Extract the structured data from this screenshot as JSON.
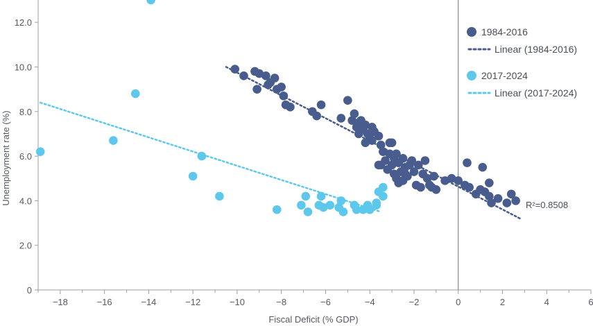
{
  "chart_data": {
    "type": "scatter",
    "xlabel": "Fiscal Deficit (% GDP)",
    "ylabel": "Unemployment rate (%)",
    "xlim": [
      -19,
      6
    ],
    "ylim": [
      0,
      13
    ],
    "xticks": [
      -18,
      -16,
      -14,
      -12,
      -10,
      -8,
      -6,
      -4,
      -2,
      0,
      2,
      4,
      6
    ],
    "xtick_labels": [
      "−18",
      "−16",
      "−14",
      "−12",
      "−10",
      "−8",
      "−6",
      "−4",
      "−2",
      "0",
      "2",
      "4",
      "6"
    ],
    "yticks": [
      0,
      2,
      4,
      6,
      8,
      10,
      12
    ],
    "ytick_labels": [
      "0",
      "2.0",
      "4.0",
      "6.0",
      "8.0",
      "10.0",
      "12.0"
    ],
    "reference_line_x": 0,
    "grid": false,
    "legend_position": "top-right",
    "annotation": "R²=0.8508",
    "series": [
      {
        "name": "1984-2016",
        "color": "#485d8e",
        "points": [
          [
            -10.1,
            9.9
          ],
          [
            -9.7,
            9.6
          ],
          [
            -9.2,
            9.8
          ],
          [
            -9.0,
            9.7
          ],
          [
            -9.1,
            9.0
          ],
          [
            -8.7,
            9.6
          ],
          [
            -8.5,
            9.3
          ],
          [
            -8.3,
            9.5
          ],
          [
            -8.6,
            9.2
          ],
          [
            -8.2,
            9.0
          ],
          [
            -8.0,
            9.1
          ],
          [
            -7.9,
            8.7
          ],
          [
            -7.8,
            8.3
          ],
          [
            -7.6,
            8.2
          ],
          [
            -6.6,
            8.0
          ],
          [
            -6.4,
            7.8
          ],
          [
            -6.2,
            8.3
          ],
          [
            -5.3,
            7.7
          ],
          [
            -5.0,
            8.5
          ],
          [
            -4.8,
            7.6
          ],
          [
            -4.7,
            7.9
          ],
          [
            -4.6,
            7.3
          ],
          [
            -4.5,
            7.0
          ],
          [
            -4.4,
            7.6
          ],
          [
            -4.3,
            7.2
          ],
          [
            -4.2,
            7.4
          ],
          [
            -4.1,
            7.0
          ],
          [
            -4.0,
            6.8
          ],
          [
            -3.9,
            7.3
          ],
          [
            -3.8,
            7.1
          ],
          [
            -3.6,
            6.9
          ],
          [
            -3.5,
            6.5
          ],
          [
            -3.4,
            6.2
          ],
          [
            -3.3,
            5.8
          ],
          [
            -3.5,
            5.6
          ],
          [
            -3.2,
            5.4
          ],
          [
            -3.1,
            6.1
          ],
          [
            -3.0,
            6.6
          ],
          [
            -3.0,
            5.6
          ],
          [
            -2.9,
            5.2
          ],
          [
            -2.8,
            6.1
          ],
          [
            -2.8,
            5.0
          ],
          [
            -2.7,
            5.7
          ],
          [
            -2.6,
            5.3
          ],
          [
            -2.5,
            5.9
          ],
          [
            -2.5,
            4.9
          ],
          [
            -2.4,
            5.5
          ],
          [
            -2.3,
            5.1
          ],
          [
            -2.2,
            5.6
          ],
          [
            -2.1,
            5.8
          ],
          [
            -2.0,
            5.3
          ],
          [
            -1.9,
            4.7
          ],
          [
            -1.8,
            5.6
          ],
          [
            -1.7,
            4.6
          ],
          [
            -1.6,
            5.2
          ],
          [
            -1.5,
            5.8
          ],
          [
            -1.4,
            5.0
          ],
          [
            -1.3,
            4.7
          ],
          [
            -1.2,
            4.6
          ],
          [
            -1.1,
            5.1
          ],
          [
            -1.0,
            4.5
          ],
          [
            -2.7,
            4.8
          ],
          [
            -3.6,
            5.6
          ],
          [
            -4.2,
            6.6
          ],
          [
            -4.5,
            7.5
          ],
          [
            -3.9,
            6.7
          ],
          [
            -3.1,
            6.6
          ],
          [
            -2.9,
            5.9
          ],
          [
            -2.4,
            5.2
          ],
          [
            -0.3,
            5.0
          ],
          [
            0.0,
            4.9
          ],
          [
            0.3,
            4.7
          ],
          [
            0.5,
            4.6
          ],
          [
            0.8,
            4.3
          ],
          [
            1.0,
            4.5
          ],
          [
            1.2,
            4.4
          ],
          [
            1.4,
            4.2
          ],
          [
            1.5,
            3.9
          ],
          [
            1.8,
            4.1
          ],
          [
            2.2,
            3.9
          ],
          [
            2.4,
            4.3
          ],
          [
            2.6,
            4.0
          ],
          [
            0.4,
            5.7
          ],
          [
            1.1,
            5.5
          ],
          [
            1.4,
            4.8
          ],
          [
            -0.6,
            4.9
          ]
        ]
      },
      {
        "name": "2017-2024",
        "color": "#5ec8ec",
        "points": [
          [
            -18.9,
            6.2
          ],
          [
            -15.6,
            6.7
          ],
          [
            -14.6,
            8.8
          ],
          [
            -13.9,
            13.0
          ],
          [
            -11.6,
            6.0
          ],
          [
            -12.0,
            5.1
          ],
          [
            -10.8,
            4.2
          ],
          [
            -8.2,
            3.6
          ],
          [
            -7.1,
            3.8
          ],
          [
            -6.8,
            3.5
          ],
          [
            -6.9,
            4.2
          ],
          [
            -6.3,
            3.8
          ],
          [
            -6.1,
            3.7
          ],
          [
            -5.8,
            3.8
          ],
          [
            -6.2,
            4.2
          ],
          [
            -5.4,
            3.7
          ],
          [
            -5.3,
            4.0
          ],
          [
            -5.2,
            3.5
          ],
          [
            -4.7,
            3.8
          ],
          [
            -4.6,
            3.6
          ],
          [
            -4.3,
            3.6
          ],
          [
            -4.1,
            3.8
          ],
          [
            -4.0,
            3.6
          ],
          [
            -3.7,
            3.8
          ],
          [
            -3.6,
            4.4
          ],
          [
            -3.4,
            4.2
          ],
          [
            -3.4,
            4.6
          ],
          [
            -3.7,
            3.9
          ]
        ]
      }
    ],
    "trendlines": [
      {
        "name": "Linear (1984-2016)",
        "color": "#485d8e",
        "x": [
          -10.5,
          2.8
        ],
        "y": [
          10.0,
          3.2
        ]
      },
      {
        "name": "Linear (2017-2024)",
        "color": "#5ec8ec",
        "x": [
          -18.9,
          -3.5
        ],
        "y": [
          8.4,
          3.5
        ]
      }
    ]
  }
}
